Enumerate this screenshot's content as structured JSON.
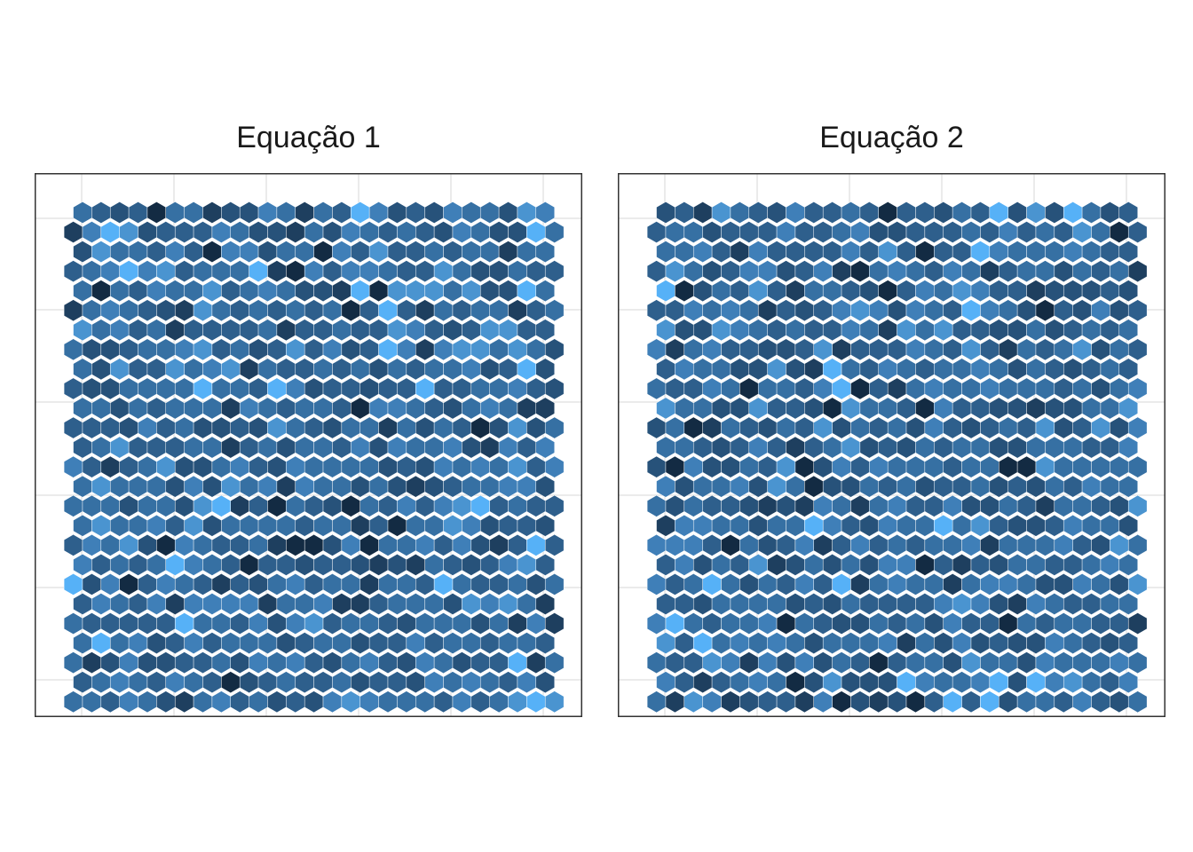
{
  "chart_data": [
    {
      "type": "heatmap",
      "title": "Equação 1",
      "grid": true,
      "legend": "none",
      "rows": 26,
      "cols": 26,
      "lattice": "hexagonal",
      "palette": [
        "#132b43",
        "#1e3f5f",
        "#27527a",
        "#2e5f8c",
        "#3670a3",
        "#3f7fb8",
        "#4a94d0",
        "#56b1f7"
      ],
      "seed": 17
    },
    {
      "type": "heatmap",
      "title": "Equação 2",
      "grid": true,
      "legend": "none",
      "rows": 26,
      "cols": 26,
      "lattice": "hexagonal",
      "palette": [
        "#132b43",
        "#1e3f5f",
        "#27527a",
        "#2e5f8c",
        "#3670a3",
        "#3f7fb8",
        "#4a94d0",
        "#56b1f7"
      ],
      "seed": 91
    }
  ]
}
